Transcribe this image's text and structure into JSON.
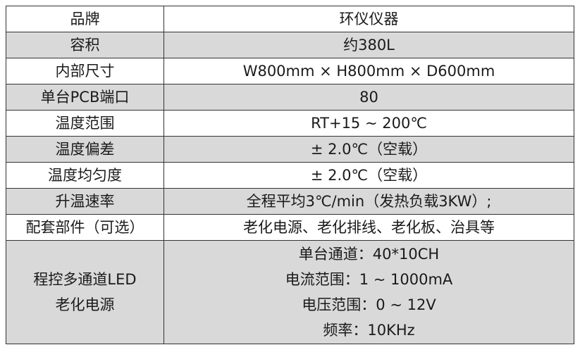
{
  "rows": [
    {
      "key": "品牌",
      "value": "环仪仪器"
    },
    {
      "key": "容积",
      "value": "约380L"
    },
    {
      "key": "内部尺寸",
      "value": "W800mm × H800mm × D600mm"
    },
    {
      "key": "单台PCB端口",
      "value": "80"
    },
    {
      "key": "温度范围",
      "value": "RT+15 ~ 200℃"
    },
    {
      "key": "温度偏差",
      "value": "± 2.0℃（空载）"
    },
    {
      "key": "温度均匀度",
      "value": "± 2.0℃（空载）"
    },
    {
      "key": "升温速率",
      "value": "全程平均3℃/min（发热负载3KW）;"
    },
    {
      "key": "配套部件（可选）",
      "value": "老化电源、老化排线、老化板、治具等"
    }
  ],
  "last_row": {
    "key_lines": [
      "程控多通道LED",
      "老化电源"
    ],
    "value_lines": [
      "单台通道：40*10CH",
      "电流范围：1 ~ 1000mA",
      "电压范围：0 ~ 12V",
      "频率：10KHz"
    ]
  },
  "colors": {
    "shaded_row": "#d9d9d9",
    "border": "#333333"
  }
}
